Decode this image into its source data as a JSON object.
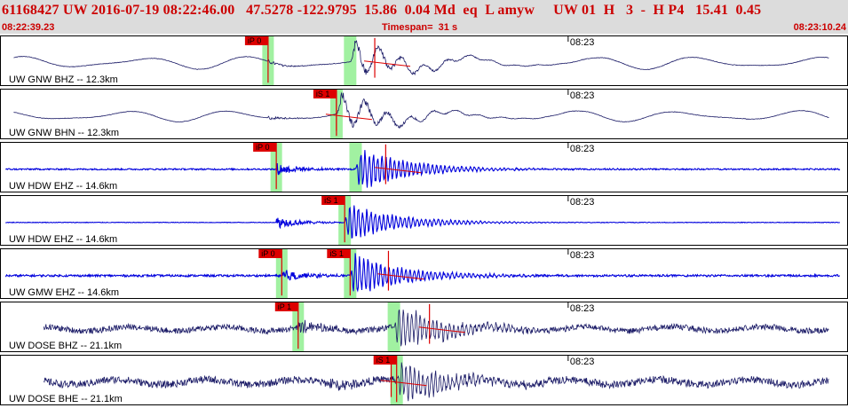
{
  "header": {
    "title": "61168427 UW 2016-07-19 08:22:46.00   47.5278 -122.9795  15.86  0.04 Md  eq  L amyw     UW 01  H   3  -  H P4   15.41  0.45",
    "start_time": "08:22:39.23",
    "timespan": "Timespan=  31 s",
    "end_time": "08:23:10.24"
  },
  "colors": {
    "header_bg": "#dcdcdc",
    "header_text": "#cc0000",
    "trace_dark": "#1a1a66",
    "trace_blue": "#0000dd",
    "pick_red": "#dd0000",
    "window_green": "#90ee90"
  },
  "chart_data": {
    "type": "line",
    "x_unit": "s",
    "xlim": [
      0,
      31
    ],
    "start_time": "08:22:39.23",
    "end_time": "08:23:10.24",
    "time_tick": {
      "label": "08:23",
      "t": 20.77
    },
    "panels": [
      {
        "label": "UW GNW BHZ -- 12.3km",
        "color": "dark",
        "style": "long",
        "base_amp": 0.4,
        "p_pick": {
          "label": "iP 0",
          "t": 9.8
        },
        "s_pick": {
          "label": "",
          "t": 12.8
        },
        "red_marks": [
          13.7
        ]
      },
      {
        "label": "UW GNW BHN -- 12.3km",
        "color": "dark",
        "style": "long",
        "base_amp": 0.35,
        "p_pick": null,
        "s_pick": {
          "label": "iS 1",
          "t": 12.3
        },
        "red_marks": [
          12.3
        ]
      },
      {
        "label": "UW HDW EHZ -- 14.6km",
        "color": "blue",
        "style": "noise",
        "base_amp": 0.07,
        "p_pick": {
          "label": "iP 0",
          "t": 10.1
        },
        "s_pick": {
          "label": "",
          "t": 13.0
        },
        "red_marks": [
          14.1
        ]
      },
      {
        "label": "UW HDW EHZ -- 14.6km",
        "color": "blue",
        "style": "quiet",
        "base_amp": 0.03,
        "p_pick": null,
        "s_pick": {
          "label": "iS 1",
          "t": 12.6
        },
        "red_marks": []
      },
      {
        "label": "UW GMW EHZ -- 14.6km",
        "color": "blue",
        "style": "noise",
        "base_amp": 0.1,
        "p_pick": {
          "label": "iP 0",
          "t": 10.3
        },
        "s_pick": {
          "label": "iS 1",
          "t": 12.8
        },
        "red_marks": [
          14.2
        ]
      },
      {
        "label": "UW DOSE BHZ -- 21.1km",
        "color": "dark",
        "style": "noise",
        "base_amp": 0.28,
        "p_pick": {
          "label": "iP 1",
          "t": 10.9
        },
        "s_pick": {
          "label": "",
          "t": 14.4
        },
        "red_marks": [
          15.7
        ]
      },
      {
        "label": "UW DOSE BHE -- 21.1km",
        "color": "dark",
        "style": "noise",
        "base_amp": 0.35,
        "p_pick": null,
        "s_pick": {
          "label": "iS 1",
          "t": 14.5
        },
        "red_marks": [
          14.3
        ]
      }
    ]
  }
}
